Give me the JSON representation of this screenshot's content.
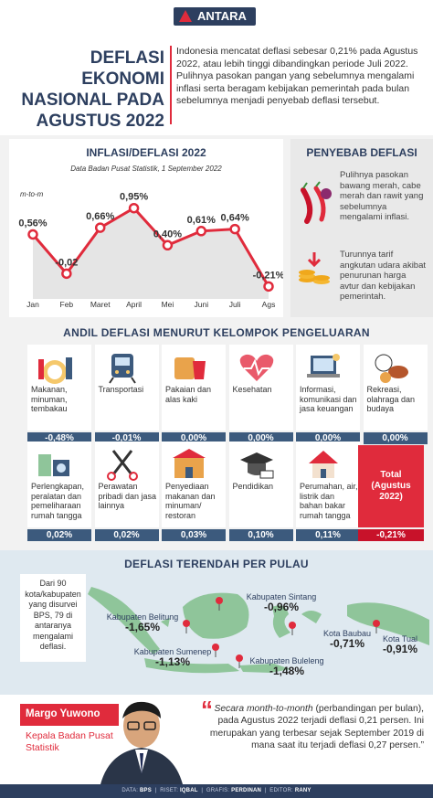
{
  "header": {
    "brand": "ANTARA"
  },
  "hero": {
    "title": "DEFLASI EKONOMI NASIONAL PADA AGUSTUS 2022",
    "text": "Indonesia mencatat deflasi sebesar 0,21% pada Agustus 2022, atau lebih tinggi dibandingkan periode Juli 2022. Pulihnya pasokan pangan yang sebelumnya mengalami inflasi serta beragam kebijakan pemerintah pada bulan sebelumnya menjadi penyebab deflasi tersebut."
  },
  "chart": {
    "title": "INFLASI/DEFLASI 2022",
    "source": "Data Badan Pusat Statistik, 1 September 2022",
    "unit": "m-to-m"
  },
  "chart_data": {
    "type": "line",
    "title": "INFLASI/DEFLASI 2022",
    "ylabel": "m-to-m",
    "categories": [
      "Jan",
      "Feb",
      "Maret",
      "April",
      "Mei",
      "Juni",
      "Juli",
      "Ags"
    ],
    "values": [
      0.56,
      -0.02,
      0.66,
      0.95,
      0.4,
      0.61,
      0.64,
      -0.21
    ],
    "value_labels": [
      "0,56%",
      "-0,02",
      "0,66%",
      "0,95%",
      "0,40%",
      "0,61%",
      "0,64%",
      "-0,21%"
    ],
    "colors": {
      "line": "#e02b3c",
      "area": "#e5e5e5"
    },
    "ylim": [
      -0.3,
      1.0
    ]
  },
  "causes": {
    "title": "PENYEBAB DEFLASI",
    "items": [
      {
        "icon": "chili-icon",
        "text": "Pulihnya pasokan bawang merah, cabe merah dan rawit yang sebelumnya mengalami inflasi."
      },
      {
        "icon": "coins-icon",
        "text": "Turunnya tarif angkutan udara akibat penurunan harga avtur dan kebijakan pemerintah."
      }
    ]
  },
  "groups": {
    "title": "ANDIL DEFLASI MENURUT KELOMPOK PENGELUARAN",
    "row1": [
      {
        "label": "Makanan, minuman, tembakau",
        "value": "-0,48%",
        "icon": "food-icon"
      },
      {
        "label": "Transportasi",
        "value": "-0,01%",
        "icon": "train-icon"
      },
      {
        "label": "Pakaian dan alas kaki",
        "value": "0,00%",
        "icon": "clothes-icon"
      },
      {
        "label": "Kesehatan",
        "value": "0,00%",
        "icon": "health-icon"
      },
      {
        "label": "Informasi, komunikasi dan jasa keuangan",
        "value": "0,00%",
        "icon": "laptop-icon"
      },
      {
        "label": "Rekreasi, olahraga dan budaya",
        "value": "0,00%",
        "icon": "sports-icon"
      }
    ],
    "row2": [
      {
        "label": "Perlengkapan, peralatan dan pemeliharaan rumah tangga",
        "value": "0,02%",
        "icon": "household-icon"
      },
      {
        "label": "Perawatan pribadi dan jasa lainnya",
        "value": "0,02%",
        "icon": "scissors-icon"
      },
      {
        "label": "Penyediaan makanan dan minuman/ restoran",
        "value": "0,03%",
        "icon": "restaurant-icon"
      },
      {
        "label": "Pendidikan",
        "value": "0,10%",
        "icon": "graduation-icon"
      },
      {
        "label": "Perumahan, air, listrik dan bahan bakar rumah tangga",
        "value": "0,11%",
        "icon": "house-icon"
      }
    ],
    "total": {
      "label": "Total (Agustus 2022)",
      "value": "-0,21%"
    }
  },
  "map": {
    "title": "DEFLASI TERENDAH PER PULAU",
    "note": "Dari 90 kota/kabupaten yang disurvei BPS, 79 di antaranya mengalami deflasi.",
    "regions": [
      {
        "name": "Kabupaten Sintang",
        "value": "-0,96%"
      },
      {
        "name": "Kabupaten Belitung",
        "value": "-1,65%"
      },
      {
        "name": "Kota Baubau",
        "value": "-0,71%"
      },
      {
        "name": "Kota Tual",
        "value": "-0,91%"
      },
      {
        "name": "Kabupaten Sumenep",
        "value": "-1,13%"
      },
      {
        "name": "Kabupaten Buleleng",
        "value": "-1,48%"
      }
    ]
  },
  "quote": {
    "name": "Margo Yuwono",
    "role": "Kepala Badan Pusat Statistik",
    "text_italic": "Secara month-to-month",
    "text": "(perbandingan per bulan), pada Agustus 2022 terjadi deflasi 0,21 persen. Ini merupakan yang terbesar sejak September 2019 di mana saat itu terjadi deflasi 0,27 persen.”",
    "open_mark": "“"
  },
  "credits": {
    "data_label": "DATA:",
    "data": "BPS",
    "riset_label": "RISET:",
    "riset": "IQBAL",
    "grafis_label": "GRAFIS:",
    "grafis": "PERDINAN",
    "editor_label": "EDITOR:",
    "editor": "RANY"
  }
}
